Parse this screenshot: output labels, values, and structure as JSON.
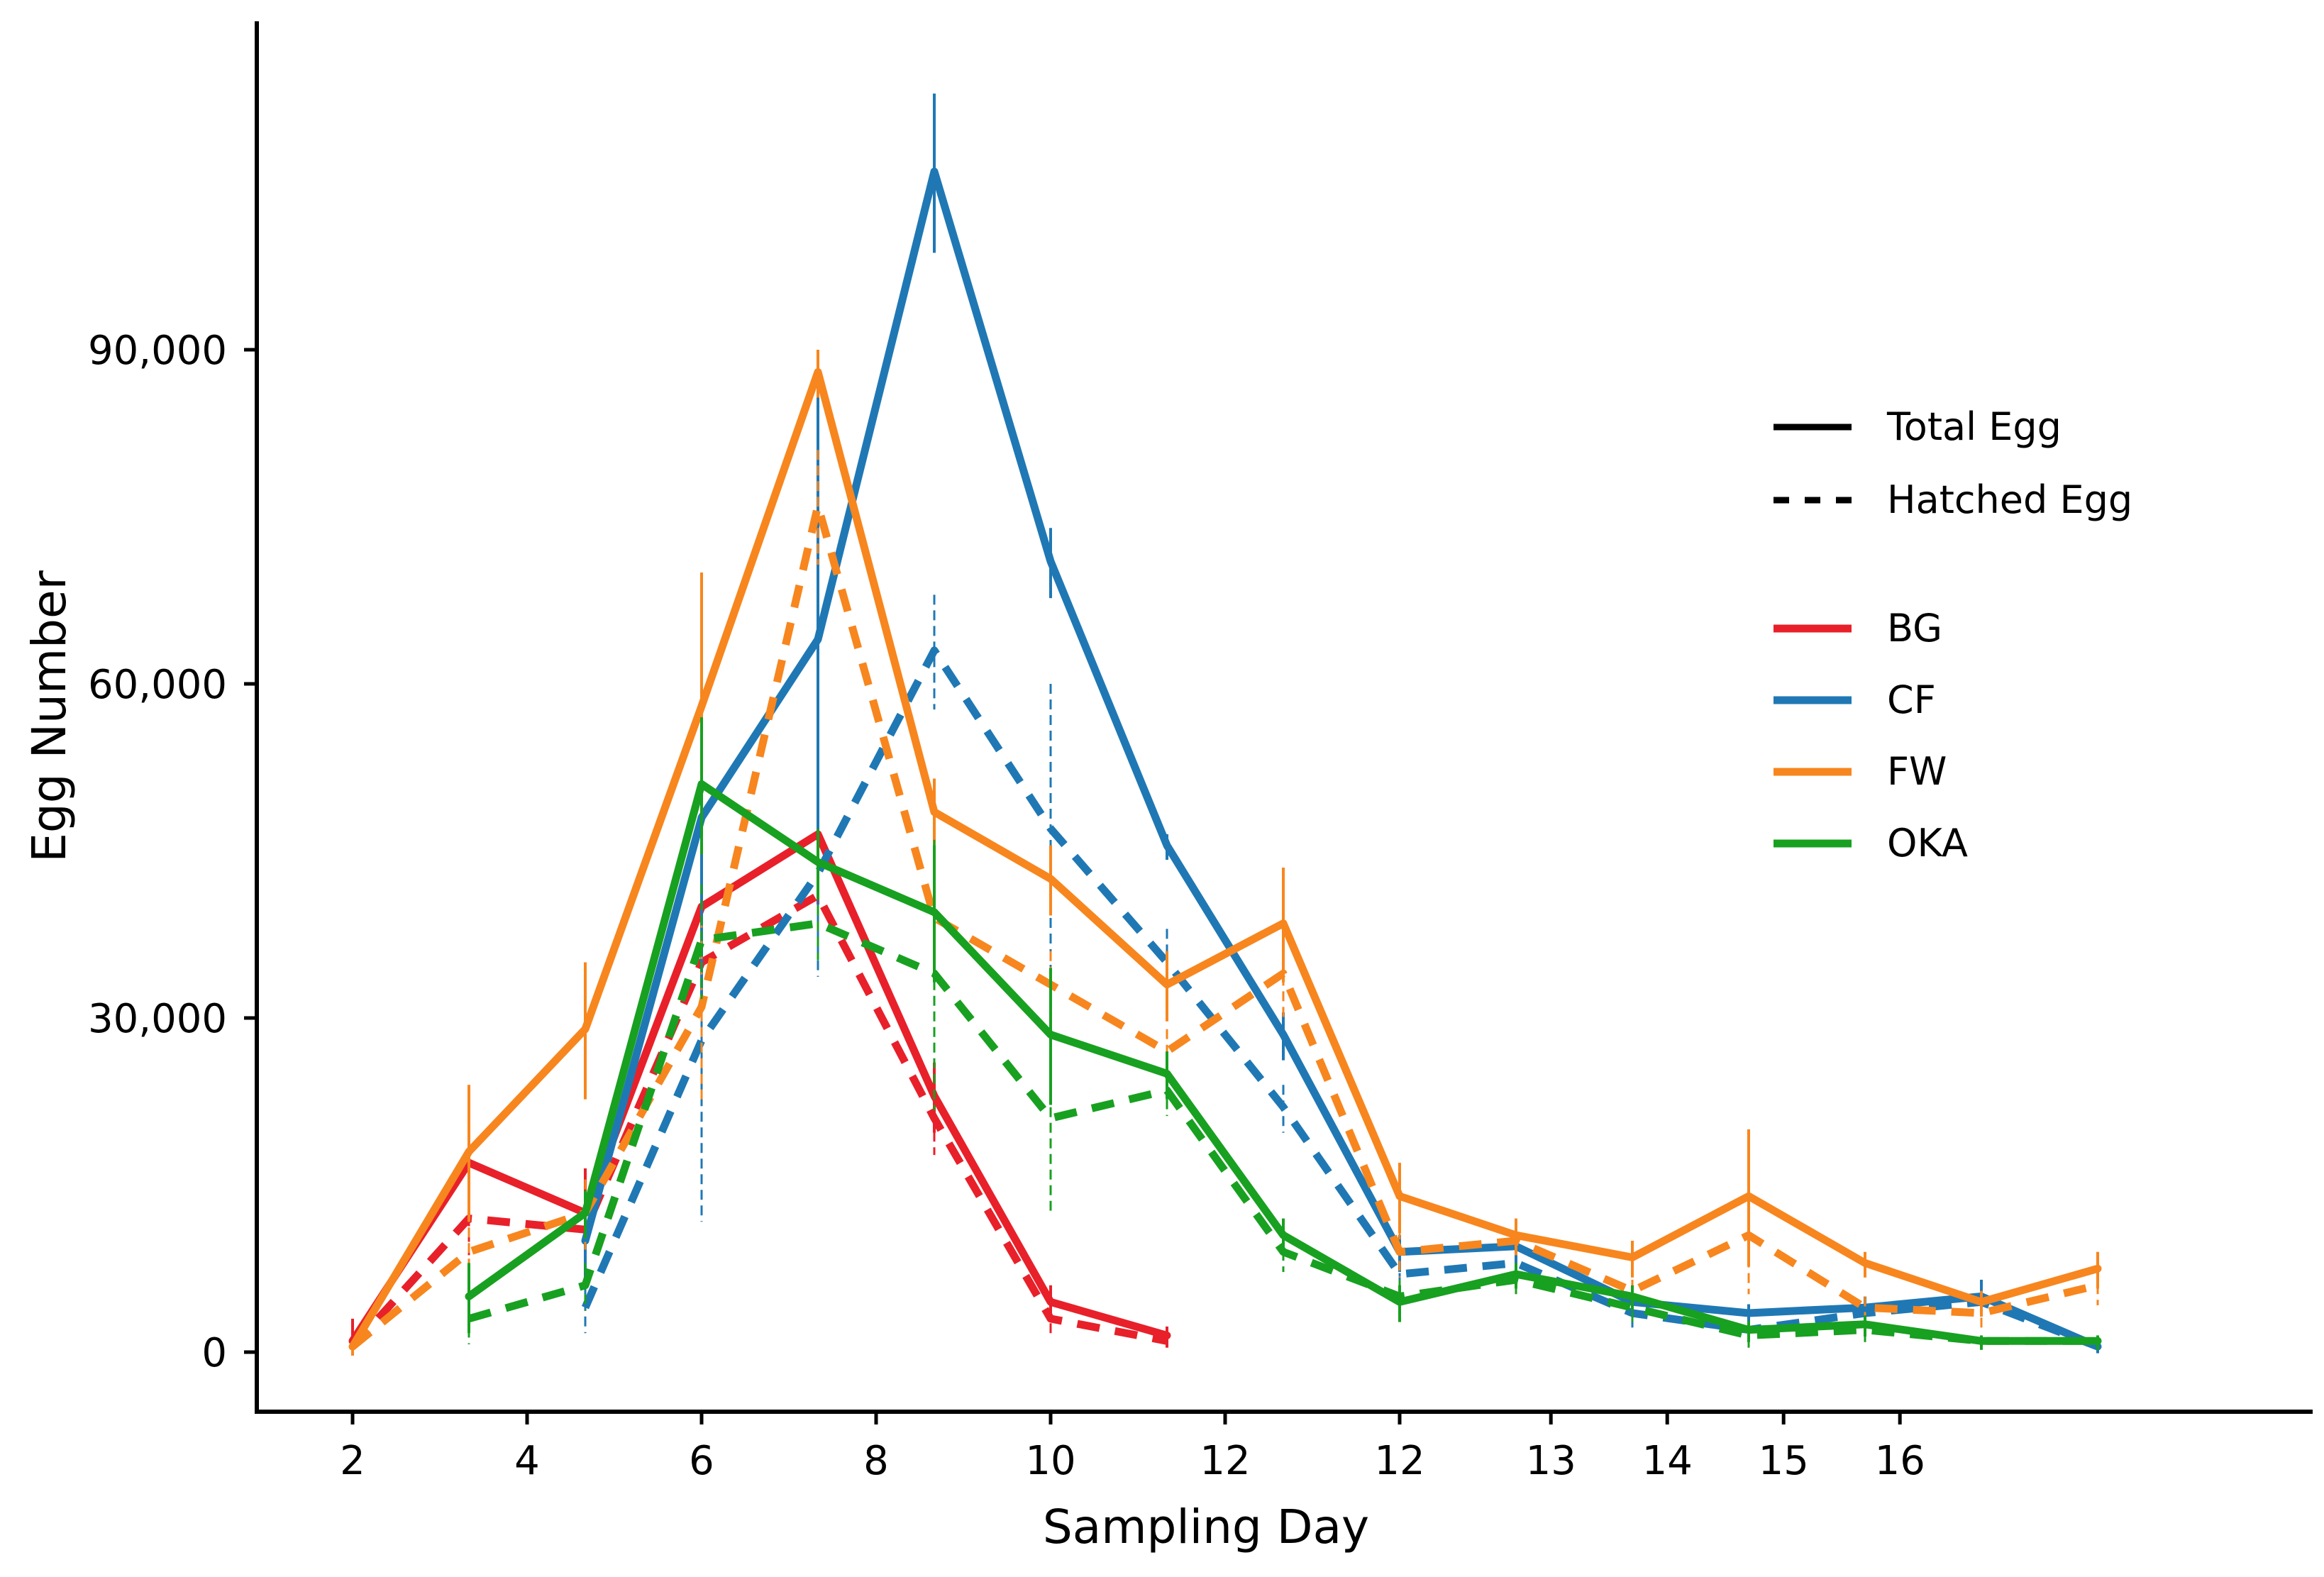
{
  "chart_data": {
    "type": "line",
    "xlabel": "Sampling Day",
    "ylabel": "Egg Number",
    "ylim": [
      -5000,
      119000
    ],
    "grid": false,
    "legend_placement": "right",
    "x_tick_labels": [
      "2",
      "4",
      "6",
      "8",
      "10",
      "12",
      "12",
      "13",
      "14",
      "15",
      "16"
    ],
    "y_ticks": [
      0,
      30000,
      60000,
      90000
    ],
    "y_tick_labels": [
      "0",
      "30,000",
      "60,000",
      "90,000"
    ],
    "legend": {
      "line_styles": [
        {
          "label": "Total Egg",
          "style": "solid"
        },
        {
          "label": "Hatched Egg",
          "style": "dashed"
        }
      ],
      "groups": [
        {
          "label": "BG",
          "color": "#e8202a"
        },
        {
          "label": "CF",
          "color": "#1f78b4"
        },
        {
          "label": "FW",
          "color": "#f7861e"
        },
        {
          "label": "OKA",
          "color": "#18a020"
        }
      ]
    },
    "series": [
      {
        "group": "BG",
        "style": "solid",
        "color": "#e8202a",
        "points": [
          {
            "x": 2,
            "y": 1000,
            "err": 2000
          },
          {
            "x": 3,
            "y": 17000,
            "err": 4000
          },
          {
            "x": 4,
            "y": 12500,
            "err": 4000
          },
          {
            "x": 5,
            "y": 40000,
            "err": 7000
          },
          {
            "x": 6,
            "y": 46500,
            "err": 6000
          },
          {
            "x": 7,
            "y": 23000,
            "err": 3000
          },
          {
            "x": 8,
            "y": 4500,
            "err": 1500
          },
          {
            "x": 9,
            "y": 1500,
            "err": 800
          }
        ]
      },
      {
        "group": "BG",
        "style": "dashed",
        "color": "#e8202a",
        "points": [
          {
            "x": 2,
            "y": 500,
            "err": 1500
          },
          {
            "x": 3,
            "y": 12000,
            "err": 3000
          },
          {
            "x": 4,
            "y": 11000,
            "err": 3000
          },
          {
            "x": 5,
            "y": 35000,
            "err": 6000
          },
          {
            "x": 6,
            "y": 41000,
            "err": 5000
          },
          {
            "x": 7,
            "y": 21000,
            "err": 3000
          },
          {
            "x": 8,
            "y": 3000,
            "err": 1000
          },
          {
            "x": 9,
            "y": 1000,
            "err": 500
          }
        ]
      },
      {
        "group": "CF",
        "style": "solid",
        "color": "#1f78b4",
        "points": [
          {
            "x": 4,
            "y": 10000,
            "err": 3000
          },
          {
            "x": 5,
            "y": 48000,
            "err": 17000
          },
          {
            "x": 6,
            "y": 64000,
            "err": 22000
          },
          {
            "x": 7,
            "y": 106000,
            "err": 7000
          },
          {
            "x": 8,
            "y": 71000,
            "err": 3000
          },
          {
            "x": 9,
            "y": 45500,
            "err": 1000
          },
          {
            "x": 10,
            "y": 28500,
            "err": 2000
          },
          {
            "x": 11,
            "y": 9000,
            "err": 1500
          },
          {
            "x": 12,
            "y": 9500,
            "err": 2000
          },
          {
            "x": 13,
            "y": 4500,
            "err": 1000
          },
          {
            "x": 14,
            "y": 3500,
            "err": 800
          },
          {
            "x": 15,
            "y": 4000,
            "err": 1000
          },
          {
            "x": 16,
            "y": 5000,
            "err": 1500
          },
          {
            "x": 17,
            "y": 500,
            "err": 300
          }
        ]
      },
      {
        "group": "CF",
        "style": "dashed",
        "color": "#1f78b4",
        "points": [
          {
            "x": 4,
            "y": 4000,
            "err": 2000
          },
          {
            "x": 5,
            "y": 28000,
            "err": 16000
          },
          {
            "x": 6,
            "y": 43000,
            "err": 9000
          },
          {
            "x": 7,
            "y": 63000,
            "err": 5000
          },
          {
            "x": 8,
            "y": 47000,
            "err": 13000
          },
          {
            "x": 9,
            "y": 35000,
            "err": 3000
          },
          {
            "x": 10,
            "y": 22000,
            "err": 2000
          },
          {
            "x": 11,
            "y": 7000,
            "err": 1500
          },
          {
            "x": 12,
            "y": 8000,
            "err": 2000
          },
          {
            "x": 13,
            "y": 3500,
            "err": 1000
          },
          {
            "x": 14,
            "y": 2000,
            "err": 1000
          },
          {
            "x": 15,
            "y": 3500,
            "err": 1000
          },
          {
            "x": 16,
            "y": 4500,
            "err": 1000
          },
          {
            "x": 17,
            "y": 500,
            "err": 300
          }
        ]
      },
      {
        "group": "FW",
        "style": "solid",
        "color": "#f7861e",
        "points": [
          {
            "x": 2,
            "y": 500,
            "err": 500
          },
          {
            "x": 3,
            "y": 18000,
            "err": 6000
          },
          {
            "x": 4,
            "y": 29000,
            "err": 6000
          },
          {
            "x": 5,
            "y": 58000,
            "err": 12000
          },
          {
            "x": 6,
            "y": 88000,
            "err": 2000
          },
          {
            "x": 7,
            "y": 48500,
            "err": 3000
          },
          {
            "x": 8,
            "y": 42500,
            "err": 3000
          },
          {
            "x": 9,
            "y": 33000,
            "err": 3000
          },
          {
            "x": 10,
            "y": 38500,
            "err": 5000
          },
          {
            "x": 11,
            "y": 14000,
            "err": 3000
          },
          {
            "x": 12,
            "y": 10500,
            "err": 1500
          },
          {
            "x": 13,
            "y": 8500,
            "err": 1500
          },
          {
            "x": 14,
            "y": 14000,
            "err": 6000
          },
          {
            "x": 15,
            "y": 8000,
            "err": 1000
          },
          {
            "x": 16,
            "y": 4500,
            "err": 1000
          },
          {
            "x": 17,
            "y": 7500,
            "err": 1500
          }
        ]
      },
      {
        "group": "FW",
        "style": "dashed",
        "color": "#f7861e",
        "points": [
          {
            "x": 2,
            "y": 500,
            "err": 500
          },
          {
            "x": 3,
            "y": 9000,
            "err": 5000
          },
          {
            "x": 4,
            "y": 12500,
            "err": 3000
          },
          {
            "x": 5,
            "y": 31000,
            "err": 8000
          },
          {
            "x": 6,
            "y": 76000,
            "err": 5000
          },
          {
            "x": 7,
            "y": 39000,
            "err": 3000
          },
          {
            "x": 8,
            "y": 33000,
            "err": 3000
          },
          {
            "x": 9,
            "y": 27000,
            "err": 2000
          },
          {
            "x": 10,
            "y": 34000,
            "err": 4000
          },
          {
            "x": 11,
            "y": 9000,
            "err": 2000
          },
          {
            "x": 12,
            "y": 10000,
            "err": 1000
          },
          {
            "x": 13,
            "y": 5500,
            "err": 1000
          },
          {
            "x": 14,
            "y": 10500,
            "err": 5000
          },
          {
            "x": 15,
            "y": 4000,
            "err": 1000
          },
          {
            "x": 16,
            "y": 3500,
            "err": 1000
          },
          {
            "x": 17,
            "y": 6000,
            "err": 1500
          }
        ]
      },
      {
        "group": "OKA",
        "style": "solid",
        "color": "#18a020",
        "points": [
          {
            "x": 3,
            "y": 5000,
            "err": 3000
          },
          {
            "x": 4,
            "y": 12500,
            "err": 2000
          },
          {
            "x": 5,
            "y": 51000,
            "err": 6000
          },
          {
            "x": 6,
            "y": 44000,
            "err": 3000
          },
          {
            "x": 7,
            "y": 39500,
            "err": 6000
          },
          {
            "x": 8,
            "y": 28500,
            "err": 6000
          },
          {
            "x": 9,
            "y": 25000,
            "err": 2000
          },
          {
            "x": 10,
            "y": 10500,
            "err": 1500
          },
          {
            "x": 11,
            "y": 4500,
            "err": 1500
          },
          {
            "x": 12,
            "y": 7000,
            "err": 1000
          },
          {
            "x": 13,
            "y": 5000,
            "err": 1000
          },
          {
            "x": 14,
            "y": 2000,
            "err": 800
          },
          {
            "x": 15,
            "y": 2500,
            "err": 800
          },
          {
            "x": 16,
            "y": 1000,
            "err": 500
          },
          {
            "x": 17,
            "y": 1000,
            "err": 500
          }
        ]
      },
      {
        "group": "OKA",
        "style": "dashed",
        "color": "#18a020",
        "points": [
          {
            "x": 3,
            "y": 3000,
            "err": 2000
          },
          {
            "x": 4,
            "y": 6000,
            "err": 2000
          },
          {
            "x": 5,
            "y": 37000,
            "err": 5000
          },
          {
            "x": 6,
            "y": 38500,
            "err": 3000
          },
          {
            "x": 7,
            "y": 34000,
            "err": 12000
          },
          {
            "x": 8,
            "y": 21000,
            "err": 8000
          },
          {
            "x": 9,
            "y": 23500,
            "err": 2000
          },
          {
            "x": 10,
            "y": 9000,
            "err": 1500
          },
          {
            "x": 11,
            "y": 5000,
            "err": 1500
          },
          {
            "x": 12,
            "y": 6500,
            "err": 1000
          },
          {
            "x": 13,
            "y": 4000,
            "err": 1000
          },
          {
            "x": 14,
            "y": 1500,
            "err": 800
          },
          {
            "x": 15,
            "y": 2000,
            "err": 800
          },
          {
            "x": 16,
            "y": 1000,
            "err": 500
          },
          {
            "x": 17,
            "y": 1000,
            "err": 500
          }
        ]
      }
    ]
  }
}
